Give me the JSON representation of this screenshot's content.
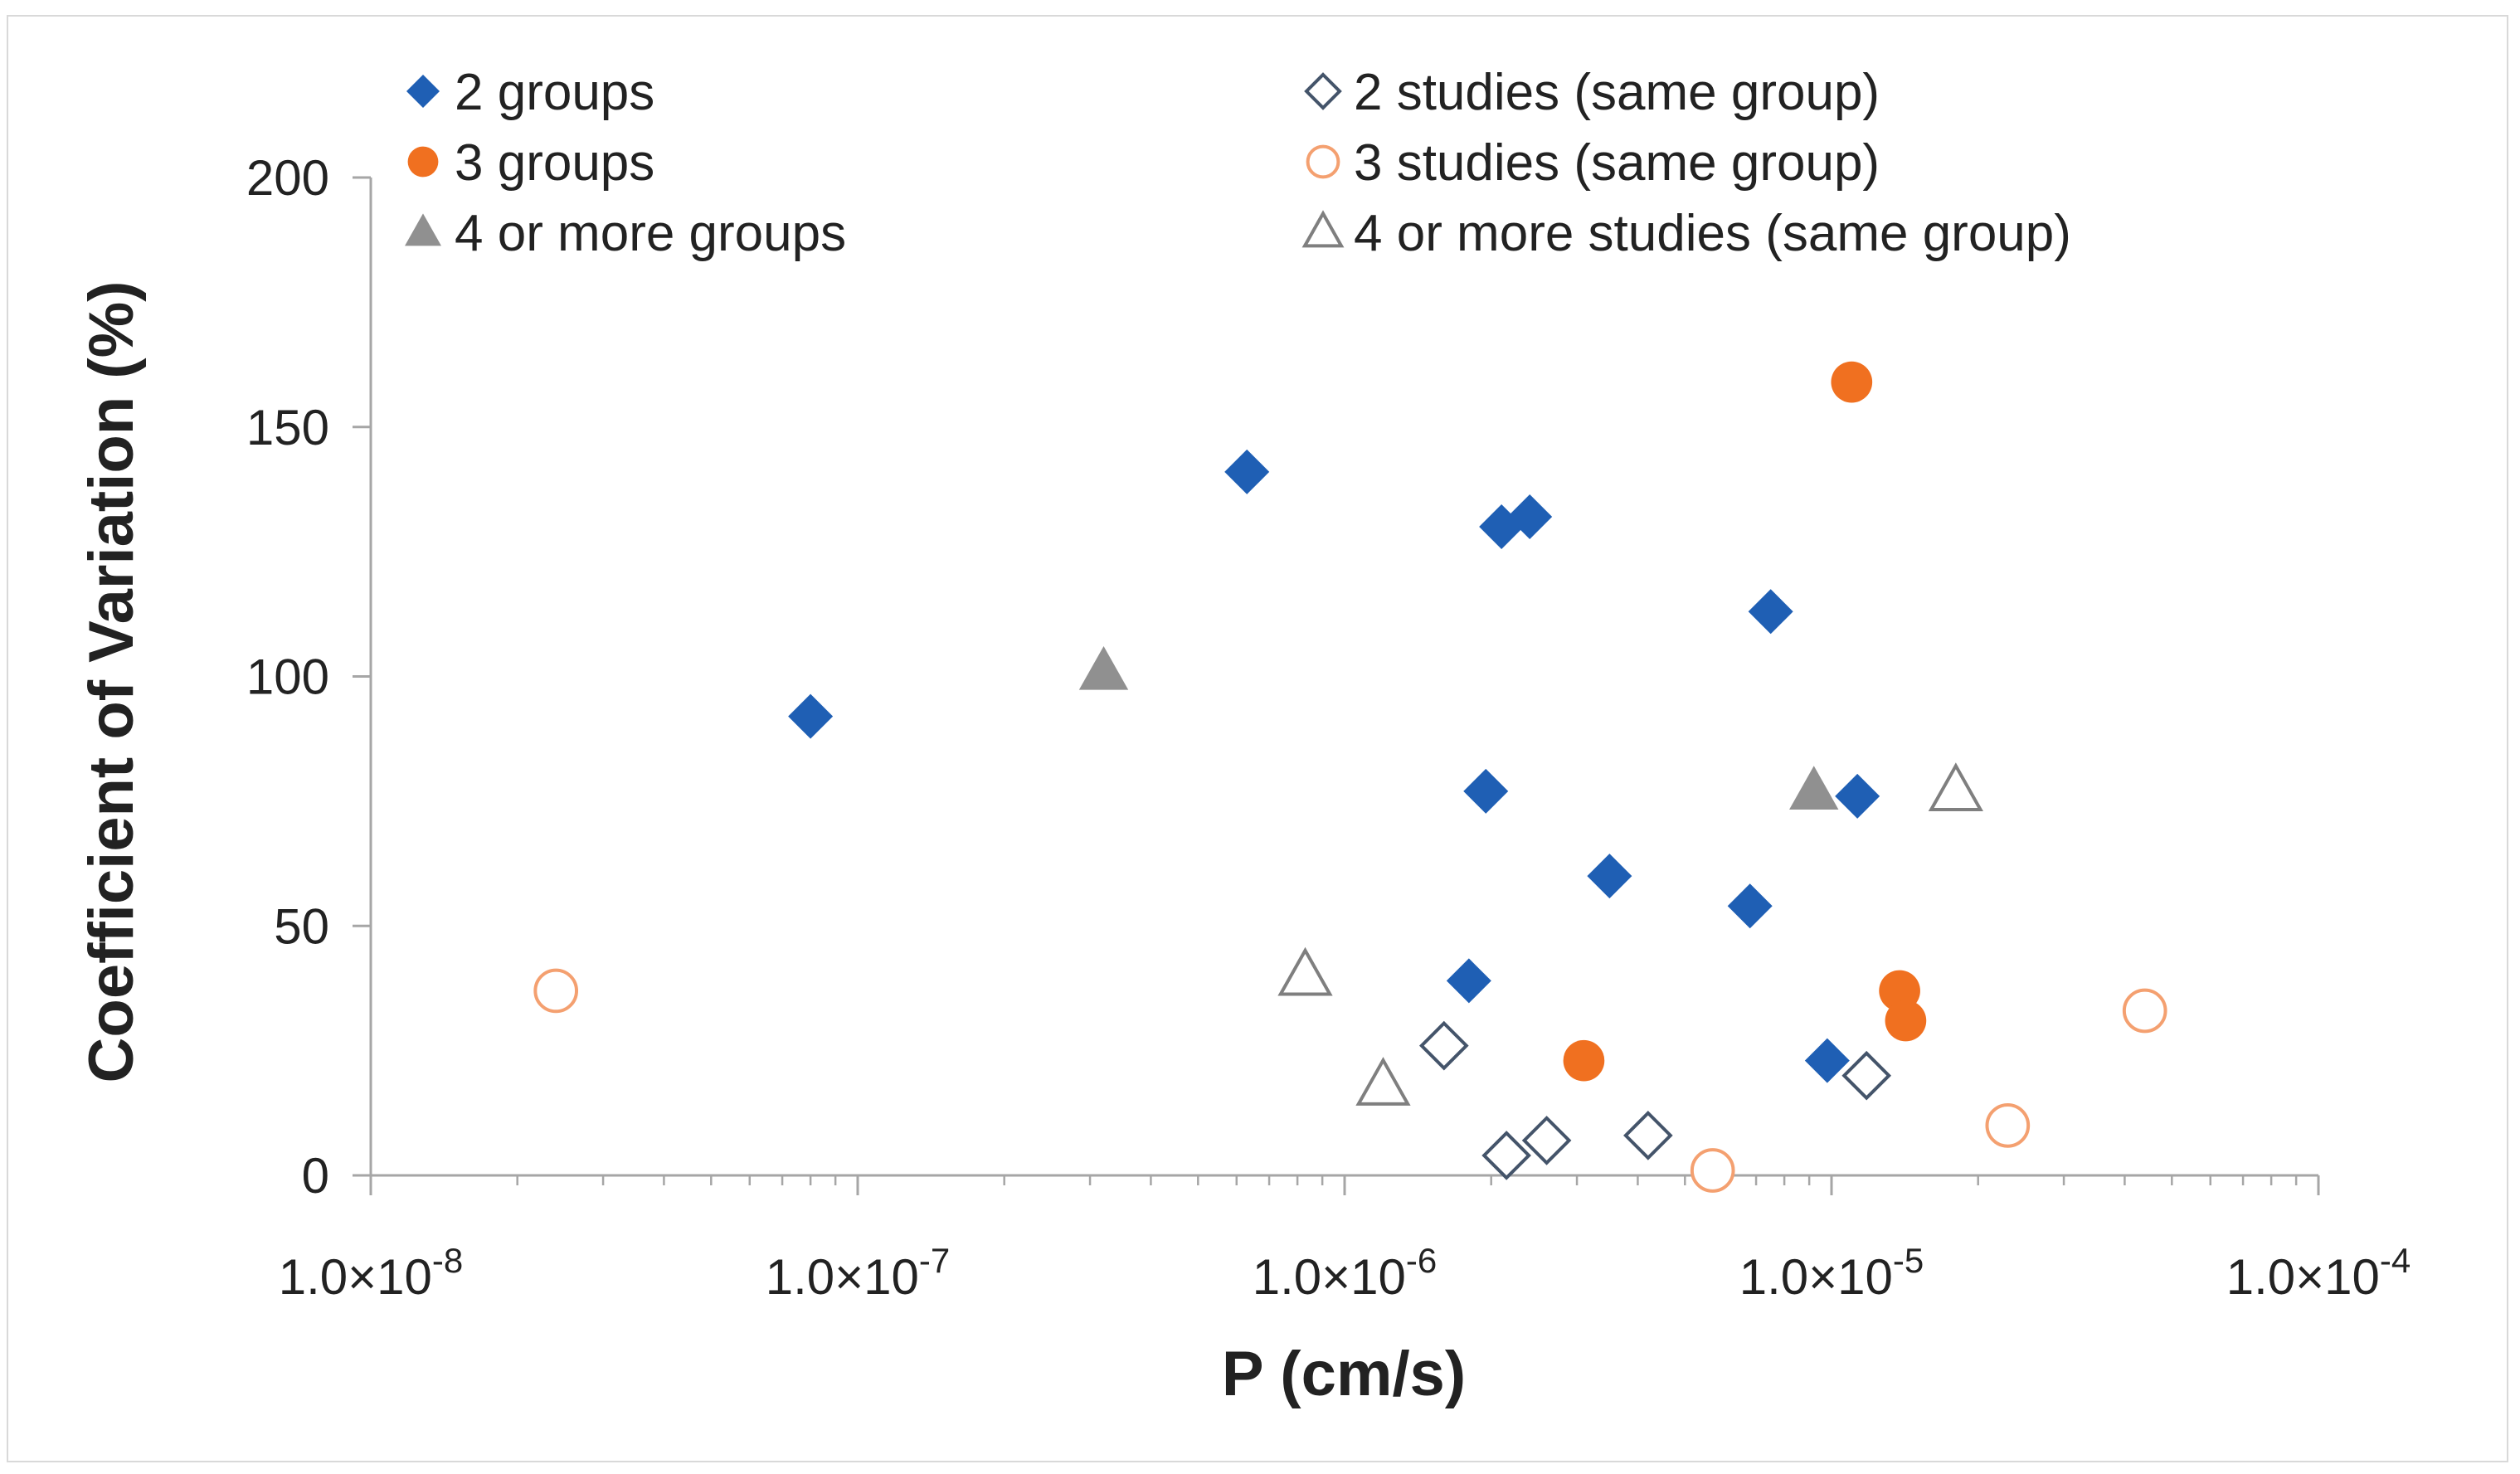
{
  "chart_data": {
    "type": "scatter",
    "title": "",
    "xlabel": "P (cm/s)",
    "ylabel": "Coefficient of Variation (%)",
    "x_scale": "log",
    "xlim": [
      1e-08,
      0.0001
    ],
    "ylim": [
      0,
      200
    ],
    "x_ticks": [
      1e-08,
      1e-07,
      1e-06,
      1e-05,
      0.0001
    ],
    "x_tick_labels": [
      "1.0×10^-8",
      "1.0×10^-7",
      "1.0×10^-6",
      "1.0×10^-5",
      "1.0×10^-4"
    ],
    "y_ticks": [
      0,
      50,
      100,
      150,
      200
    ],
    "y_tick_labels": [
      "0",
      "50",
      "100",
      "150",
      "200"
    ],
    "grid": false,
    "legend_position": "top",
    "series": [
      {
        "name": "2 groups",
        "marker": "diamond",
        "filled": true,
        "color": "#1f5fb4",
        "points": [
          {
            "x": 8e-08,
            "y": 92
          },
          {
            "x": 6.3e-07,
            "y": 141
          },
          {
            "x": 1.95e-06,
            "y": 77
          },
          {
            "x": 2.1e-06,
            "y": 130
          },
          {
            "x": 2.4e-06,
            "y": 132
          },
          {
            "x": 1.8e-06,
            "y": 39
          },
          {
            "x": 3.5e-06,
            "y": 60
          },
          {
            "x": 6.8e-06,
            "y": 54
          },
          {
            "x": 7.5e-06,
            "y": 113
          },
          {
            "x": 9.8e-06,
            "y": 23
          },
          {
            "x": 1.13e-05,
            "y": 76
          }
        ]
      },
      {
        "name": "3 groups",
        "marker": "circle",
        "filled": true,
        "color": "#f07020",
        "points": [
          {
            "x": 3.1e-06,
            "y": 23
          },
          {
            "x": 1.1e-05,
            "y": 159
          },
          {
            "x": 1.38e-05,
            "y": 37
          },
          {
            "x": 1.42e-05,
            "y": 31
          }
        ]
      },
      {
        "name": "4 or more groups",
        "marker": "triangle",
        "filled": true,
        "color": "#909090",
        "points": [
          {
            "x": 3.2e-07,
            "y": 101
          },
          {
            "x": 9.2e-06,
            "y": 77
          }
        ]
      },
      {
        "name": "2 studies (same group)",
        "marker": "diamond",
        "filled": false,
        "color": "#44546a",
        "points": [
          {
            "x": 1.6e-06,
            "y": 26
          },
          {
            "x": 2.15e-06,
            "y": 4
          },
          {
            "x": 2.6e-06,
            "y": 7
          },
          {
            "x": 4.2e-06,
            "y": 8
          },
          {
            "x": 1.18e-05,
            "y": 20
          }
        ]
      },
      {
        "name": "3 studies (same group)",
        "marker": "circle",
        "filled": false,
        "color": "#f4a070",
        "points": [
          {
            "x": 2.4e-08,
            "y": 37
          },
          {
            "x": 5.7e-06,
            "y": 1
          },
          {
            "x": 2.3e-05,
            "y": 10
          },
          {
            "x": 4.4e-05,
            "y": 33
          }
        ]
      },
      {
        "name": "4 or more studies (same group)",
        "marker": "triangle",
        "filled": false,
        "color": "#7f7f7f",
        "points": [
          {
            "x": 8.3e-07,
            "y": 40
          },
          {
            "x": 1.2e-06,
            "y": 18
          },
          {
            "x": 1.8e-05,
            "y": 77
          }
        ]
      }
    ]
  }
}
